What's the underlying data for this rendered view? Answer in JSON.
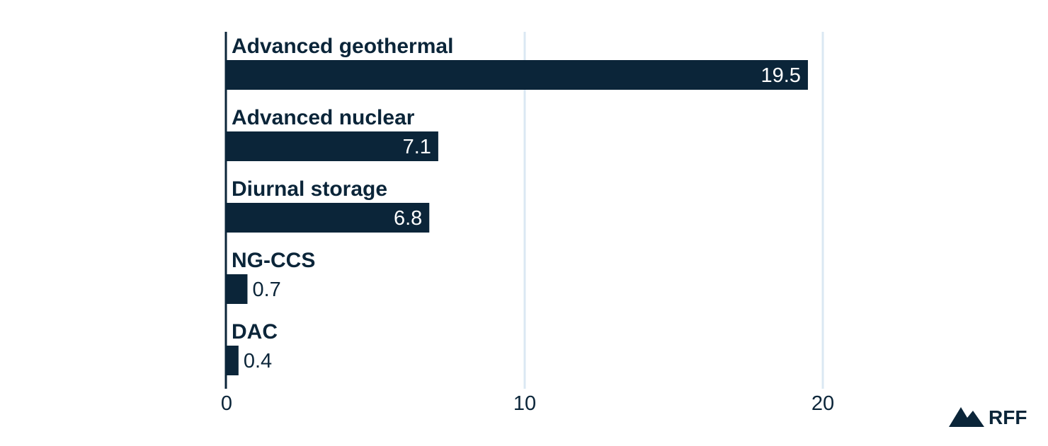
{
  "chart_data": {
    "type": "bar",
    "orientation": "horizontal",
    "categories": [
      "Advanced geothermal",
      "Advanced nuclear",
      "Diurnal storage",
      "NG-CCS",
      "DAC"
    ],
    "values": [
      19.5,
      7.1,
      6.8,
      0.7,
      0.4
    ],
    "value_labels": [
      "19.5",
      "7.1",
      "6.8",
      "0.7",
      "0.4"
    ],
    "xlim": [
      0,
      20
    ],
    "x_ticks": [
      0,
      10,
      20
    ],
    "x_tick_labels": [
      "0",
      "10",
      "20"
    ],
    "grid": true,
    "colors": {
      "bar": "#0b2539",
      "text": "#0b2539",
      "bar_label_inside": "#ffffff",
      "grid": "#dbe8f3",
      "axis": "#0b2539"
    }
  },
  "logo": {
    "text": "RFF",
    "icon": "mountain-icon"
  }
}
